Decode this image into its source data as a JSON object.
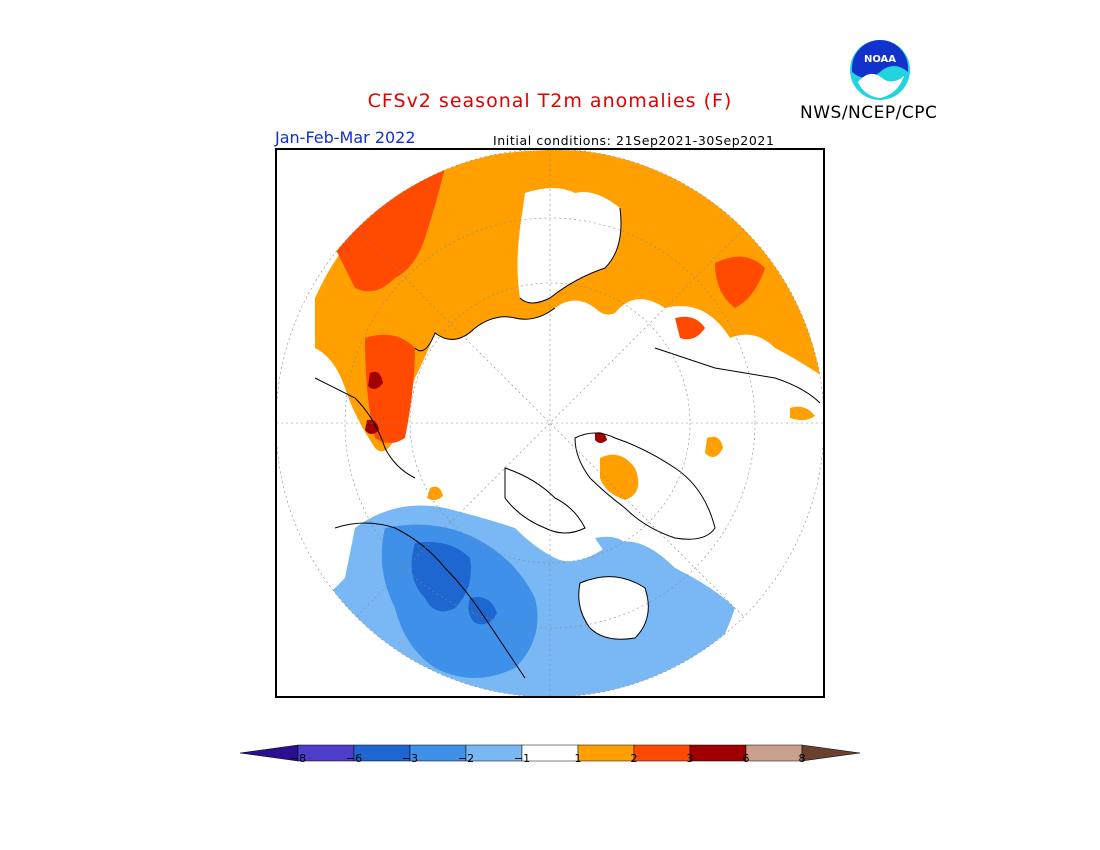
{
  "header": {
    "title": "CFSv2 seasonal T2m anomalies (F)",
    "agency": "NWS/NCEP/CPC",
    "period": "Jan-Feb-Mar 2022",
    "initial_conditions": "Initial conditions: 21Sep2021-30Sep2021",
    "logo_text": "NOAA"
  },
  "colors": {
    "title": "#e00000",
    "period": "#1030d0",
    "no_anomaly": "#ffffff",
    "frame": "#000000"
  },
  "colorbar": {
    "segments": [
      {
        "range": "< -8",
        "color": "#2a0f8e"
      },
      {
        "range": "-8 to -6",
        "color": "#4f3cc8"
      },
      {
        "range": "-6 to -3",
        "color": "#1e66d0"
      },
      {
        "range": "-3 to -2",
        "color": "#3f90e8"
      },
      {
        "range": "-2 to -1",
        "color": "#7ab8f5"
      },
      {
        "range": "-1 to 1",
        "color": "#ffffff"
      },
      {
        "range": "1 to 2",
        "color": "#ffa000"
      },
      {
        "range": "2 to 3",
        "color": "#ff4a00"
      },
      {
        "range": "3 to 6",
        "color": "#a00000"
      },
      {
        "range": "6 to 8",
        "color": "#caa08c"
      },
      {
        "range": "> 8",
        "color": "#6a4030"
      }
    ],
    "ticks": [
      "−8",
      "−6",
      "−3",
      "−2",
      "−1",
      "1",
      "2",
      "3",
      "6",
      "8"
    ]
  },
  "map": {
    "projection": "north-polar-stereographic",
    "regions": [
      {
        "name": "Eurasia",
        "anomaly": "warm (1 to 3, locally 3 to 6)"
      },
      {
        "name": "North America",
        "anomaly": "cold (-1 to -6)"
      },
      {
        "name": "Greenland",
        "anomaly": "mostly near normal"
      },
      {
        "name": "Arctic Ocean",
        "anomaly": "near normal"
      }
    ]
  }
}
